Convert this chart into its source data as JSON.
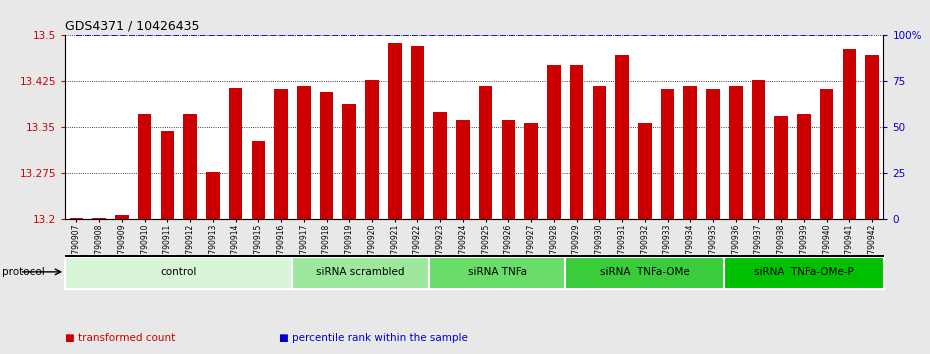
{
  "title": "GDS4371 / 10426435",
  "samples": [
    "GSM790907",
    "GSM790908",
    "GSM790909",
    "GSM790910",
    "GSM790911",
    "GSM790912",
    "GSM790913",
    "GSM790914",
    "GSM790915",
    "GSM790916",
    "GSM790917",
    "GSM790918",
    "GSM790919",
    "GSM790920",
    "GSM790921",
    "GSM790922",
    "GSM790923",
    "GSM790924",
    "GSM790925",
    "GSM790926",
    "GSM790927",
    "GSM790928",
    "GSM790929",
    "GSM790930",
    "GSM790931",
    "GSM790932",
    "GSM790933",
    "GSM790934",
    "GSM790935",
    "GSM790936",
    "GSM790937",
    "GSM790938",
    "GSM790939",
    "GSM790940",
    "GSM790941",
    "GSM790942"
  ],
  "bar_values": [
    13.202,
    13.202,
    13.208,
    13.372,
    13.345,
    13.372,
    13.278,
    13.415,
    13.328,
    13.412,
    13.418,
    13.408,
    13.388,
    13.428,
    13.488,
    13.482,
    13.375,
    13.362,
    13.418,
    13.362,
    13.358,
    13.452,
    13.452,
    13.418,
    13.468,
    13.358,
    13.412,
    13.418,
    13.412,
    13.418,
    13.428,
    13.368,
    13.372,
    13.412,
    13.478,
    13.468
  ],
  "groups": [
    {
      "label": "control",
      "start": 0,
      "end": 9,
      "color": "#d8f5d8"
    },
    {
      "label": "siRNA scrambled",
      "start": 10,
      "end": 15,
      "color": "#9ee89e"
    },
    {
      "label": "siRNA TNFa",
      "start": 16,
      "end": 21,
      "color": "#6adc6a"
    },
    {
      "label": "siRNA  TNFa-OMe",
      "start": 22,
      "end": 28,
      "color": "#3acc3a"
    },
    {
      "label": "siRNA  TNFa-OMe-P",
      "start": 29,
      "end": 35,
      "color": "#00c000"
    }
  ],
  "ylim": [
    13.2,
    13.5
  ],
  "yticks_left": [
    13.2,
    13.275,
    13.35,
    13.425,
    13.5
  ],
  "yticks_right": [
    0,
    25,
    50,
    75,
    100
  ],
  "bar_color": "#cc0000",
  "percentile_color": "#0000cc",
  "bg_color": "#e8e8e8",
  "plot_bg_color": "#ffffff",
  "legend_items": [
    {
      "label": "transformed count",
      "color": "#cc0000"
    },
    {
      "label": "percentile rank within the sample",
      "color": "#0000cc"
    }
  ]
}
